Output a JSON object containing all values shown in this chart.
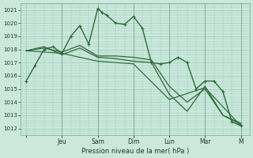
{
  "xlabel": "Pression niveau de la mer( hPa )",
  "ylim": [
    1011.5,
    1021.5
  ],
  "yticks": [
    1012,
    1013,
    1014,
    1015,
    1016,
    1017,
    1018,
    1019,
    1020,
    1021
  ],
  "background_color": "#cce8dc",
  "grid_color": "#99ccb8",
  "line_color": "#2d6a3a",
  "day_labels": [
    "",
    "Jeu",
    "Sam",
    "Dim",
    "Lun",
    "Mar",
    "M"
  ],
  "day_positions": [
    0,
    2,
    4,
    6,
    8,
    10,
    12
  ],
  "xlim": [
    -0.3,
    12.5
  ],
  "lines": [
    {
      "x": [
        0.0,
        0.5,
        1.0,
        1.5,
        2.0,
        2.5,
        3.0,
        3.5,
        4.0,
        4.25,
        4.5,
        5.0,
        5.5,
        6.0,
        6.5,
        7.0,
        7.5,
        8.0,
        8.5,
        9.0,
        9.5,
        10.0,
        10.5,
        11.0,
        11.5,
        12.0
      ],
      "y": [
        1015.6,
        1016.8,
        1018.0,
        1018.2,
        1017.7,
        1019.0,
        1019.8,
        1018.4,
        1021.1,
        1020.8,
        1020.6,
        1020.0,
        1019.9,
        1020.5,
        1019.6,
        1017.0,
        1016.9,
        1017.0,
        1017.4,
        1017.0,
        1015.0,
        1015.6,
        1015.6,
        1014.8,
        1012.5,
        1012.2
      ],
      "marker": "+",
      "ms": 3,
      "lw": 1.0
    },
    {
      "x": [
        0.0,
        1.0,
        2.0,
        3.0,
        4.0,
        5.0,
        6.0,
        7.0,
        8.0,
        9.0,
        10.0,
        11.0,
        12.0
      ],
      "y": [
        1017.9,
        1018.1,
        1017.8,
        1018.3,
        1017.5,
        1017.5,
        1017.4,
        1017.2,
        1015.2,
        1014.0,
        1015.0,
        1013.0,
        1012.3
      ],
      "marker": null,
      "ms": 0,
      "lw": 0.9
    },
    {
      "x": [
        0.0,
        1.0,
        2.0,
        3.0,
        4.0,
        5.0,
        6.0,
        7.0,
        8.0,
        9.0,
        10.0,
        11.0,
        12.0
      ],
      "y": [
        1017.9,
        1018.2,
        1017.6,
        1018.1,
        1017.4,
        1017.3,
        1017.1,
        1017.0,
        1014.6,
        1013.3,
        1015.2,
        1013.0,
        1012.4
      ],
      "marker": null,
      "ms": 0,
      "lw": 0.9
    },
    {
      "x": [
        0.0,
        2.0,
        4.0,
        6.0,
        8.0,
        10.0,
        12.0
      ],
      "y": [
        1017.9,
        1017.7,
        1017.1,
        1016.9,
        1014.2,
        1015.1,
        1012.2
      ],
      "marker": null,
      "ms": 0,
      "lw": 0.85
    }
  ]
}
